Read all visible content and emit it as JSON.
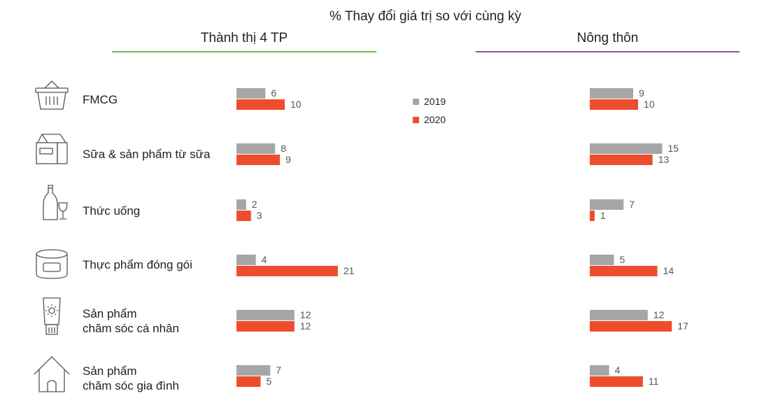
{
  "title": "% Thay đổi giá trị so với cùng kỳ",
  "colors": {
    "y2019": "#a6a6a6",
    "y2020": "#ee4d2d",
    "urban_rule": "#6abf4b",
    "rural_rule": "#9b4f96"
  },
  "legend": [
    {
      "label": "2019",
      "color": "#a6a6a6"
    },
    {
      "label": "2020",
      "color": "#ee4d2d"
    }
  ],
  "categories": [
    {
      "label": "FMCG",
      "icon": "basket-icon"
    },
    {
      "label": "Sữa & sản phẩm từ sữa",
      "icon": "milk-carton-icon"
    },
    {
      "label": "Thức uống",
      "icon": "bottle-glass-icon"
    },
    {
      "label": "Thực phẩm đóng gói",
      "icon": "can-icon"
    },
    {
      "label": "Sản phẩm\nchăm sóc cá nhân",
      "icon": "lotion-tube-icon"
    },
    {
      "label": "Sản phẩm\nchăm sóc gia đình",
      "icon": "house-icon"
    }
  ],
  "chart_data": [
    {
      "type": "bar",
      "title": "Thành thị 4 TP",
      "categories": [
        "FMCG",
        "Sữa & sản phẩm từ sữa",
        "Thức uống",
        "Thực phẩm đóng gói",
        "Sản phẩm chăm sóc cá nhân",
        "Sản phẩm chăm sóc gia đình"
      ],
      "series": [
        {
          "name": "2019",
          "values": [
            6,
            8,
            2,
            4,
            12,
            7
          ]
        },
        {
          "name": "2020",
          "values": [
            10,
            9,
            3,
            21,
            12,
            5
          ]
        }
      ]
    },
    {
      "type": "bar",
      "title": "Nông thôn",
      "categories": [
        "FMCG",
        "Sữa & sản phẩm từ sữa",
        "Thức uống",
        "Thực phẩm đóng gói",
        "Sản phẩm chăm sóc cá nhân",
        "Sản phẩm chăm sóc gia đình"
      ],
      "series": [
        {
          "name": "2019",
          "values": [
            9,
            15,
            7,
            5,
            12,
            4
          ]
        },
        {
          "name": "2020",
          "values": [
            10,
            13,
            1,
            14,
            17,
            11
          ]
        }
      ]
    }
  ]
}
